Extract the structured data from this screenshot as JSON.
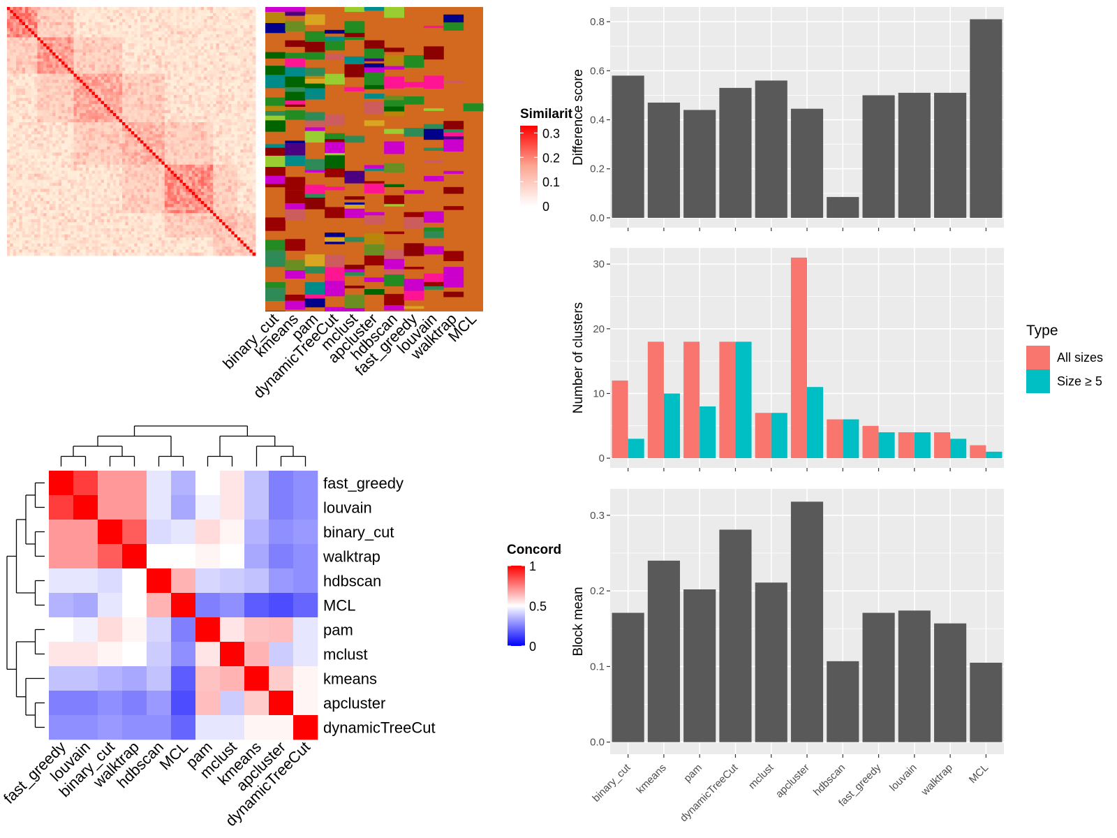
{
  "similarity_legend": {
    "title": "Similarity",
    "ticks": [
      "0.3",
      "0.2",
      "0.1",
      "0"
    ],
    "tick_values": [
      0.3,
      0.2,
      0.1,
      0
    ]
  },
  "concordance_legend": {
    "title": "Concordance",
    "ticks": [
      "1",
      "0.5",
      "0"
    ],
    "tick_values": [
      1,
      0.5,
      0
    ]
  },
  "type_legend": {
    "title": "Type",
    "items": [
      {
        "label": "All sizes",
        "color": "#F8766D"
      },
      {
        "label": "Size ≥ 5",
        "color": "#00BFC4"
      }
    ]
  },
  "methods_order": [
    "binary_cut",
    "kmeans",
    "pam",
    "dynamicTreeCut",
    "mclust",
    "apcluster",
    "hdbscan",
    "fast_greedy",
    "louvain",
    "walktrap",
    "MCL"
  ],
  "concordance_order": [
    "fast_greedy",
    "louvain",
    "binary_cut",
    "walktrap",
    "hdbscan",
    "MCL",
    "pam",
    "mclust",
    "kmeans",
    "apcluster",
    "dynamicTreeCut"
  ],
  "concordance_matrix": [
    [
      1.0,
      0.88,
      0.7,
      0.7,
      0.45,
      0.35,
      0.5,
      0.55,
      0.38,
      0.25,
      0.28
    ],
    [
      0.88,
      1.0,
      0.7,
      0.7,
      0.45,
      0.33,
      0.47,
      0.55,
      0.38,
      0.25,
      0.28
    ],
    [
      0.7,
      0.7,
      1.0,
      0.82,
      0.43,
      0.45,
      0.57,
      0.52,
      0.35,
      0.28,
      0.3
    ],
    [
      0.7,
      0.7,
      0.82,
      1.0,
      0.5,
      0.5,
      0.52,
      0.5,
      0.33,
      0.25,
      0.28
    ],
    [
      0.45,
      0.45,
      0.43,
      0.5,
      1.0,
      0.65,
      0.42,
      0.4,
      0.38,
      0.3,
      0.28
    ],
    [
      0.35,
      0.33,
      0.45,
      0.5,
      0.65,
      1.0,
      0.25,
      0.28,
      0.18,
      0.15,
      0.2
    ],
    [
      0.5,
      0.47,
      0.57,
      0.52,
      0.42,
      0.25,
      1.0,
      0.55,
      0.62,
      0.63,
      0.45
    ],
    [
      0.55,
      0.55,
      0.52,
      0.5,
      0.4,
      0.28,
      0.55,
      1.0,
      0.65,
      0.4,
      0.45
    ],
    [
      0.38,
      0.38,
      0.35,
      0.33,
      0.38,
      0.18,
      0.62,
      0.65,
      1.0,
      0.6,
      0.52
    ],
    [
      0.25,
      0.25,
      0.28,
      0.25,
      0.3,
      0.15,
      0.63,
      0.4,
      0.6,
      1.0,
      0.52
    ],
    [
      0.28,
      0.28,
      0.3,
      0.28,
      0.28,
      0.2,
      0.45,
      0.45,
      0.52,
      0.52,
      1.0
    ]
  ],
  "chart_data": [
    {
      "type": "bar",
      "categories": [
        "binary_cut",
        "kmeans",
        "pam",
        "dynamicTreeCut",
        "mclust",
        "apcluster",
        "hdbscan",
        "fast_greedy",
        "louvain",
        "walktrap",
        "MCL"
      ],
      "values": [
        0.58,
        0.47,
        0.44,
        0.53,
        0.56,
        0.445,
        0.085,
        0.5,
        0.51,
        0.51,
        0.81
      ],
      "xlabel": "",
      "ylabel": "Difference score",
      "ylim": [
        -0.04,
        0.86
      ],
      "yticks": [
        0.0,
        0.2,
        0.4,
        0.6,
        0.8
      ],
      "ytick_labels": [
        "0.0",
        "0.2",
        "0.4",
        "0.6",
        "0.8"
      ],
      "grid": true
    },
    {
      "type": "bar",
      "categories": [
        "binary_cut",
        "kmeans",
        "pam",
        "dynamicTreeCut",
        "mclust",
        "apcluster",
        "hdbscan",
        "fast_greedy",
        "louvain",
        "walktrap",
        "MCL"
      ],
      "series": [
        {
          "name": "All sizes",
          "color": "#F8766D",
          "values": [
            12,
            18,
            18,
            18,
            7,
            31,
            6,
            5,
            4,
            4,
            2
          ]
        },
        {
          "name": "Size ≥ 5",
          "color": "#00BFC4",
          "values": [
            3,
            10,
            8,
            18,
            7,
            11,
            6,
            4,
            4,
            3,
            1
          ]
        }
      ],
      "xlabel": "",
      "ylabel": "Number of clusters",
      "ylim": [
        -1.5,
        32.5
      ],
      "yticks": [
        0,
        10,
        20,
        30
      ],
      "ytick_labels": [
        "0",
        "10",
        "20",
        "30"
      ],
      "legend": "right",
      "grid": true
    },
    {
      "type": "bar",
      "categories": [
        "binary_cut",
        "kmeans",
        "pam",
        "dynamicTreeCut",
        "mclust",
        "apcluster",
        "hdbscan",
        "fast_greedy",
        "louvain",
        "walktrap",
        "MCL"
      ],
      "values": [
        0.171,
        0.24,
        0.202,
        0.281,
        0.211,
        0.318,
        0.107,
        0.171,
        0.174,
        0.157,
        0.105
      ],
      "xlabel": "",
      "ylabel": "Block mean",
      "ylim": [
        -0.016,
        0.335
      ],
      "yticks": [
        0.0,
        0.1,
        0.2,
        0.3
      ],
      "ytick_labels": [
        "0.0",
        "0.1",
        "0.2",
        "0.3"
      ],
      "grid": true
    },
    {
      "type": "heatmap",
      "title": "",
      "rows": [
        "fast_greedy",
        "louvain",
        "binary_cut",
        "walktrap",
        "hdbscan",
        "MCL",
        "pam",
        "mclust",
        "kmeans",
        "apcluster",
        "dynamicTreeCut"
      ],
      "columns": [
        "fast_greedy",
        "louvain",
        "binary_cut",
        "walktrap",
        "hdbscan",
        "MCL",
        "pam",
        "mclust",
        "kmeans",
        "apcluster",
        "dynamicTreeCut"
      ],
      "value_range": [
        0,
        1
      ],
      "legend": "Concordance"
    },
    {
      "type": "heatmap",
      "title": "",
      "rows": [],
      "columns": [],
      "value_range": [
        0,
        0.3
      ],
      "legend": "Similarity"
    }
  ]
}
